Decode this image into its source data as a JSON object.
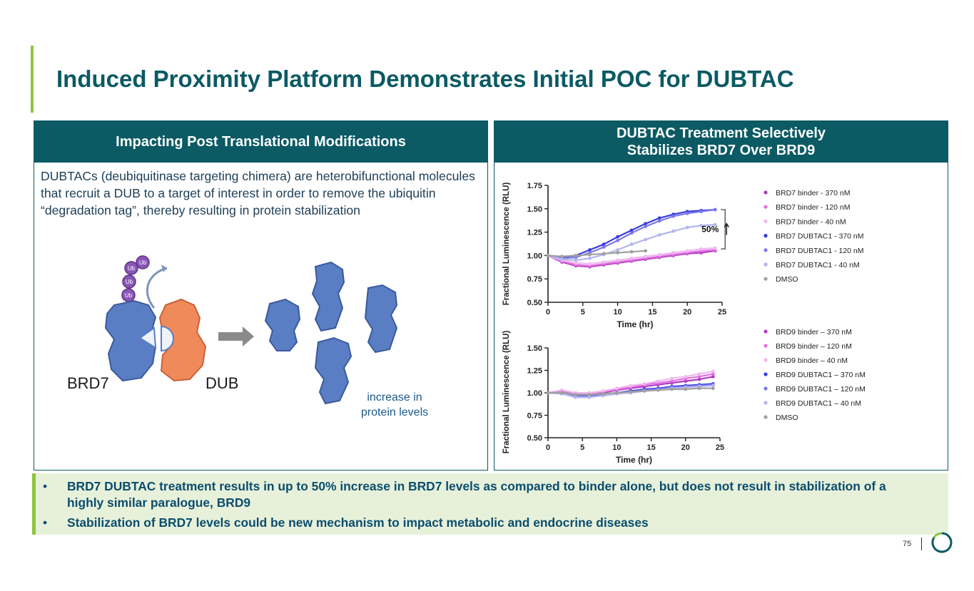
{
  "title": "Induced Proximity Platform Demonstrates Initial POC for DUBTAC",
  "left_panel": {
    "header": "Impacting Post Translational Modifications",
    "description": "DUBTACs (deubiquitinase targeting chimera) are heterobifunctional molecules that recruit a DUB to a target of interest in order to remove the ubiquitin “degradation tag”, thereby resulting in protein stabilization",
    "diagram": {
      "ub_label": "Ub",
      "brd7_label": "BRD7",
      "dub_label": "DUB",
      "result_label_line1": "increase in",
      "result_label_line2": "protein levels"
    }
  },
  "right_panel": {
    "header_line1": "DUBTAC Treatment Selectively",
    "header_line2": "Stabilizes BRD7 Over BRD9"
  },
  "colors": {
    "teal": "#0b5a64",
    "green_accent": "#8cc63f",
    "protein_blue": "#5a7ec4",
    "dub_orange": "#f08a5a",
    "ub_purple": "#8a56b8"
  },
  "chart_data": [
    {
      "type": "line",
      "title": "",
      "xlabel": "Time (hr)",
      "ylabel": "Fractional Luminescence (RLU)",
      "xlim": [
        0,
        25
      ],
      "ylim": [
        0.5,
        1.75
      ],
      "xticks": [
        "0",
        "5",
        "10",
        "15",
        "20",
        "25"
      ],
      "yticks": [
        "0.50",
        "0.75",
        "1.00",
        "1.25",
        "1.50",
        "1.75"
      ],
      "annotation": "50%",
      "x": [
        0,
        2,
        4,
        6,
        8,
        10,
        12,
        14,
        16,
        18,
        20,
        22,
        24
      ],
      "series": [
        {
          "name": "BRD7 binder - 370 nM",
          "color": "#b03cc0",
          "values": [
            1.0,
            0.93,
            0.89,
            0.88,
            0.9,
            0.92,
            0.94,
            0.96,
            0.98,
            1.0,
            1.02,
            1.03,
            1.05
          ]
        },
        {
          "name": "BRD7 binder -  120 nM",
          "color": "#e070e0",
          "values": [
            1.0,
            0.94,
            0.9,
            0.89,
            0.91,
            0.93,
            0.95,
            0.97,
            0.99,
            1.01,
            1.03,
            1.05,
            1.06
          ]
        },
        {
          "name": "BRD7 binder -  40 nM",
          "color": "#f0b8f0",
          "values": [
            1.0,
            0.95,
            0.92,
            0.91,
            0.93,
            0.95,
            0.97,
            0.99,
            1.01,
            1.03,
            1.05,
            1.07,
            1.08
          ]
        },
        {
          "name": "BRD7 DUBTAC1 -  370 nM",
          "color": "#3b3be0",
          "values": [
            1.0,
            0.98,
            1.0,
            1.06,
            1.12,
            1.2,
            1.27,
            1.34,
            1.4,
            1.44,
            1.47,
            1.48,
            1.49
          ]
        },
        {
          "name": "BRD7 DUBTAC1 - 120 nM",
          "color": "#7a7ae8",
          "values": [
            1.0,
            0.97,
            0.98,
            1.03,
            1.09,
            1.16,
            1.24,
            1.31,
            1.37,
            1.42,
            1.45,
            1.47,
            1.49
          ]
        },
        {
          "name": "BRD7 DUBTAC1 -  40 nM",
          "color": "#b4b4f0",
          "values": [
            1.0,
            0.96,
            0.95,
            0.97,
            1.01,
            1.06,
            1.12,
            1.17,
            1.22,
            1.26,
            1.3,
            1.32,
            1.33
          ]
        },
        {
          "name": "DMSO",
          "color": "#a0a0a0",
          "values": [
            1.0,
            0.99,
            1.0,
            1.01,
            1.02,
            1.03,
            1.04,
            1.05,
            null,
            null,
            null,
            null,
            null
          ]
        }
      ]
    },
    {
      "type": "line",
      "title": "",
      "xlabel": "Time (hr)",
      "ylabel": "Fractional Luminescence (RLU)",
      "xlim": [
        0,
        25
      ],
      "ylim": [
        0.5,
        1.5
      ],
      "xticks": [
        "0",
        "5",
        "10",
        "15",
        "20",
        "25"
      ],
      "yticks": [
        "0.50",
        "0.75",
        "1.00",
        "1.25",
        "1.50"
      ],
      "x": [
        0,
        2,
        4,
        6,
        8,
        10,
        12,
        14,
        16,
        18,
        20,
        22,
        24
      ],
      "series": [
        {
          "name": "BRD9 binder – 370 nM",
          "color": "#b03cc0",
          "values": [
            1.0,
            1.01,
            0.98,
            0.98,
            1.0,
            1.03,
            1.05,
            1.07,
            1.09,
            1.11,
            1.13,
            1.15,
            1.18
          ]
        },
        {
          "name": "BRD9 binder – 120 nM",
          "color": "#e070e0",
          "values": [
            1.0,
            1.02,
            0.99,
            0.99,
            1.01,
            1.04,
            1.06,
            1.09,
            1.11,
            1.13,
            1.16,
            1.18,
            1.21
          ]
        },
        {
          "name": "BRD9 binder – 40 nM",
          "color": "#f0b8f0",
          "values": [
            1.0,
            1.03,
            1.0,
            1.0,
            1.02,
            1.05,
            1.08,
            1.1,
            1.13,
            1.16,
            1.18,
            1.21,
            1.24
          ]
        },
        {
          "name": "BRD9 DUBTAC1 – 370 nM",
          "color": "#3b3be0",
          "values": [
            1.0,
            1.0,
            0.97,
            0.96,
            0.98,
            1.0,
            1.02,
            1.04,
            1.05,
            1.07,
            1.08,
            1.09,
            1.1
          ]
        },
        {
          "name": "BRD9 DUBTAC1 – 120 nM",
          "color": "#7a7ae8",
          "values": [
            1.0,
            0.99,
            0.96,
            0.96,
            0.97,
            0.99,
            1.01,
            1.03,
            1.04,
            1.06,
            1.07,
            1.08,
            1.09
          ]
        },
        {
          "name": "BRD9 DUBTAC1 – 40 nM",
          "color": "#b4b4f0",
          "values": [
            1.0,
            0.99,
            0.95,
            0.95,
            0.97,
            0.99,
            1.0,
            1.02,
            1.03,
            1.05,
            1.06,
            1.07,
            1.08
          ]
        },
        {
          "name": "DMSO",
          "color": "#a0a0a0",
          "values": [
            1.0,
            1.0,
            0.98,
            0.98,
            0.99,
            1.0,
            1.01,
            1.02,
            1.03,
            1.04,
            1.04,
            1.05,
            1.05
          ]
        }
      ]
    }
  ],
  "bullets": [
    "BRD7 DUBTAC treatment results in up to 50% increase in BRD7 levels as compared to binder alone, but does not result in stabilization of a highly similar paralogue, BRD9",
    "Stabilization of BRD7 levels could be new mechanism to impact metabolic and endocrine diseases"
  ],
  "bullet_marker": "•",
  "page_number": "75"
}
